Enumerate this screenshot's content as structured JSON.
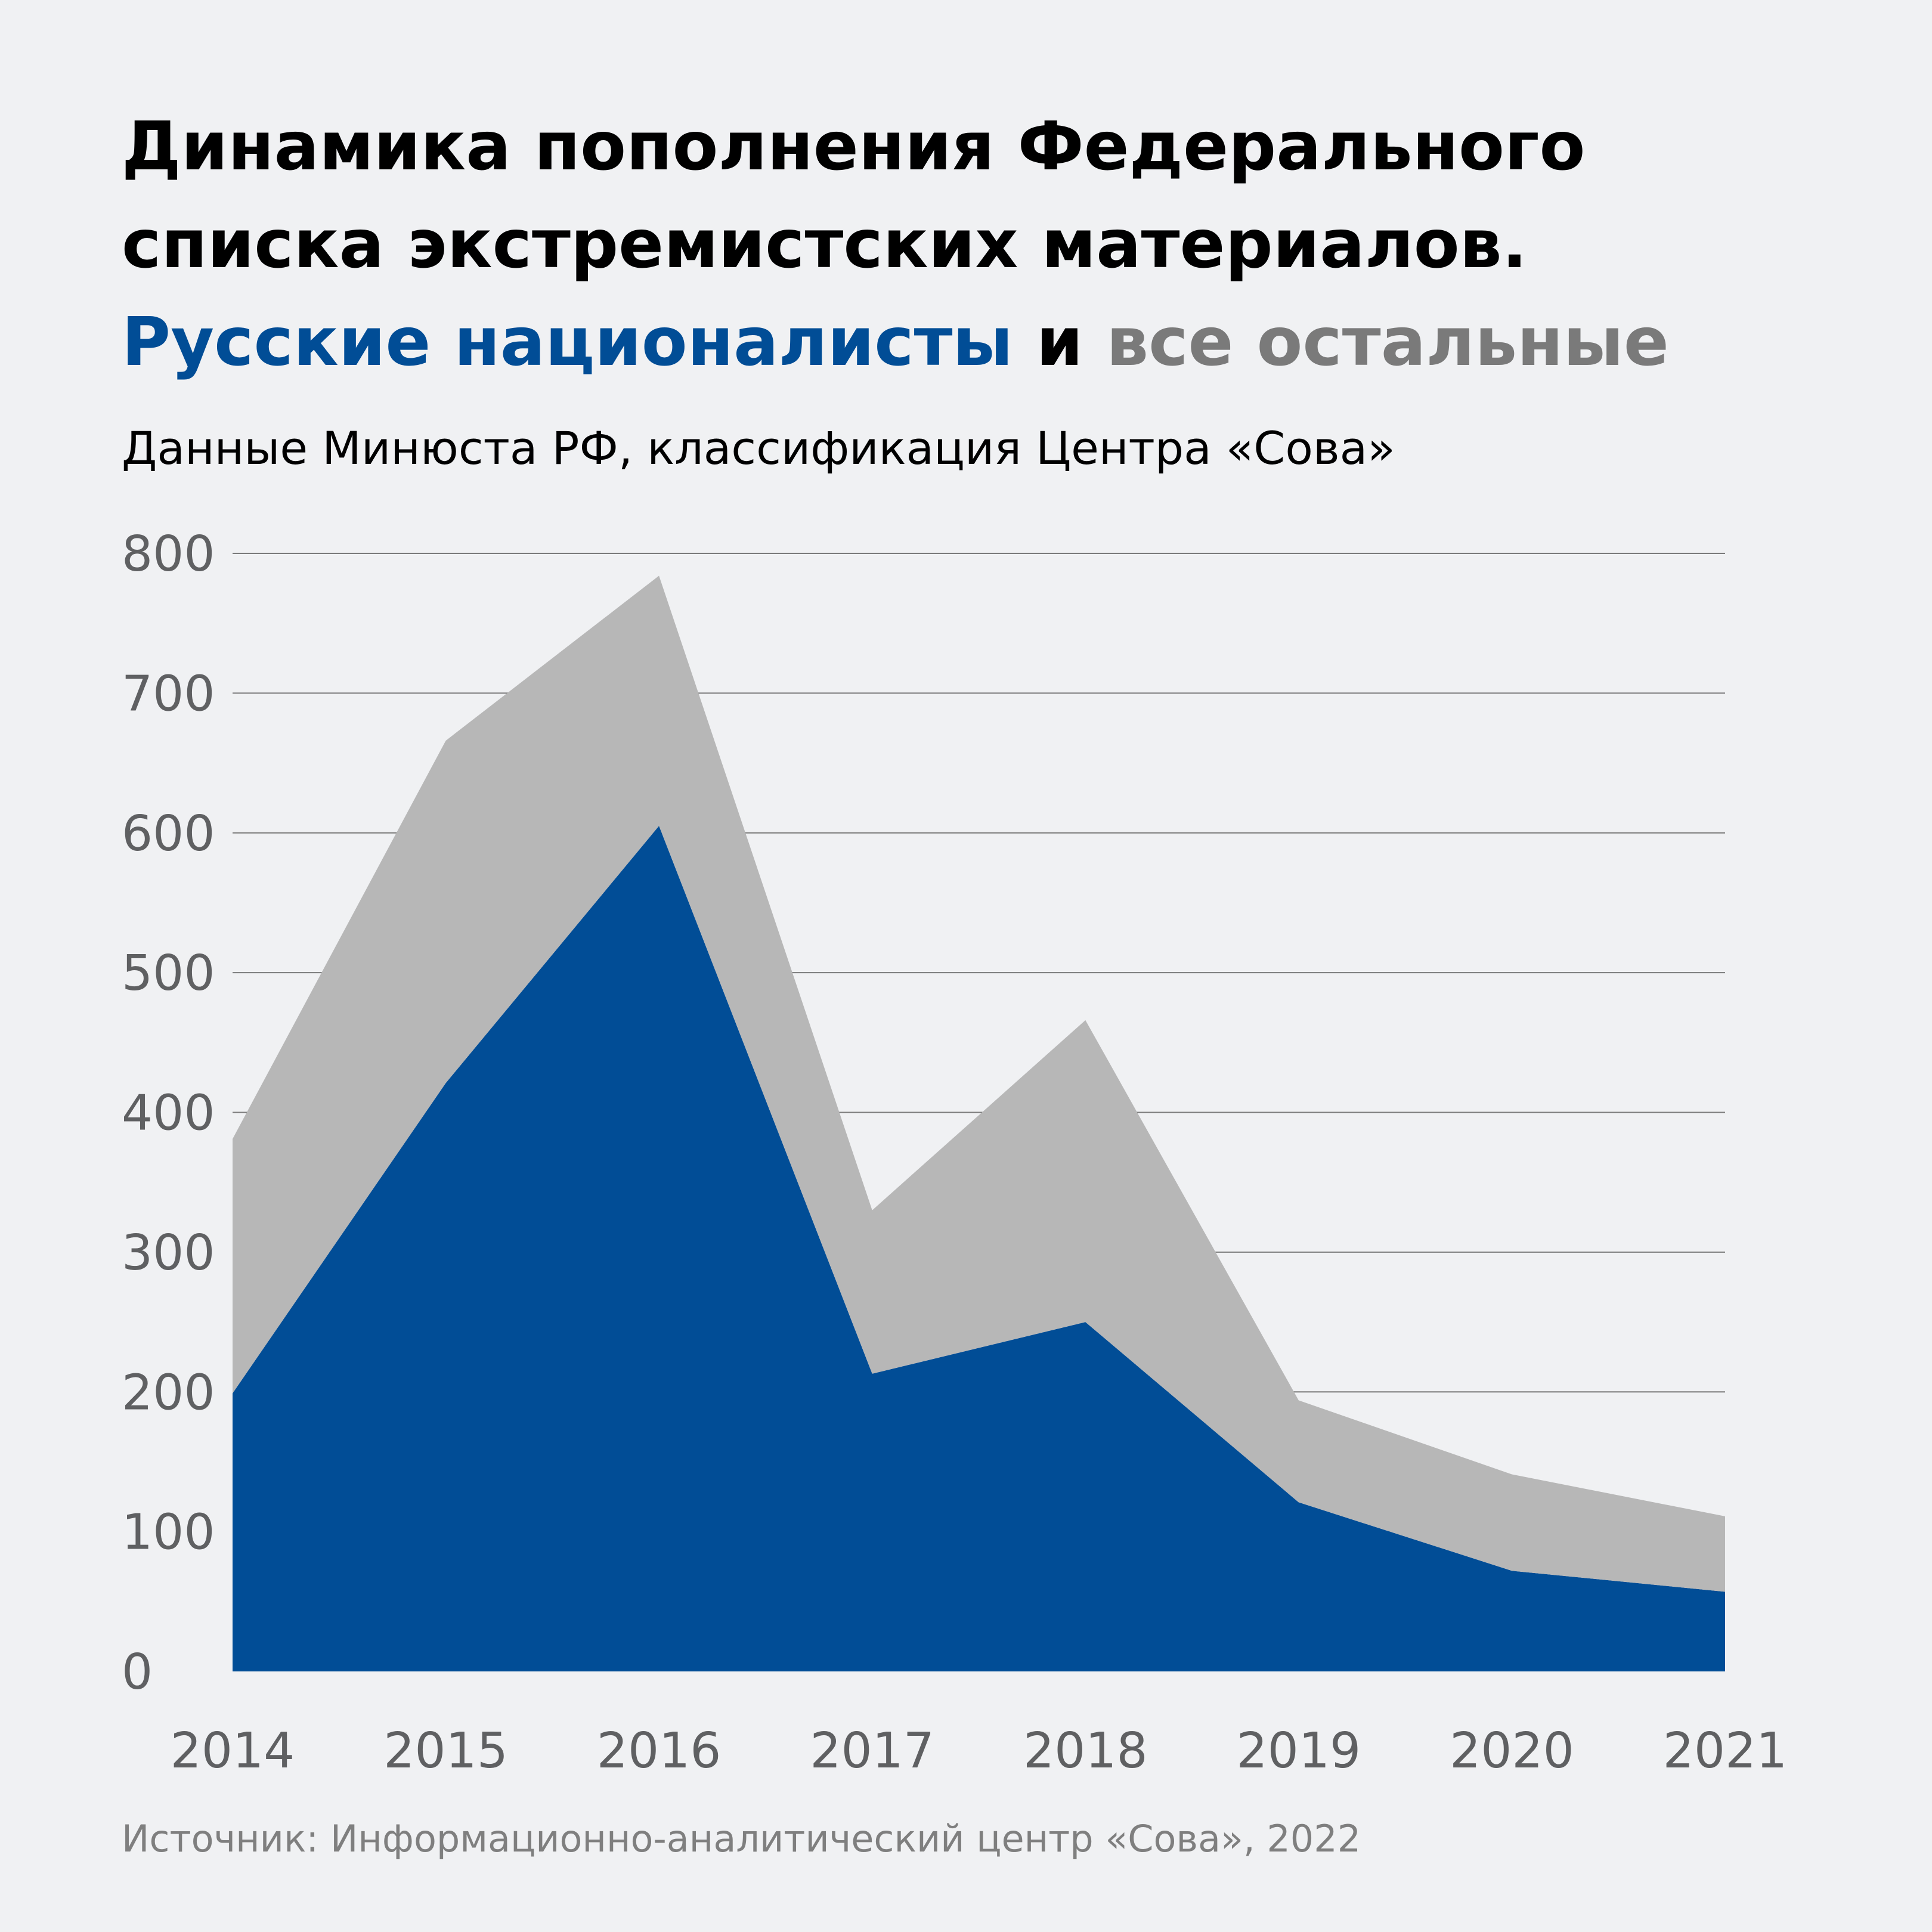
{
  "title": {
    "line1": "Динамика пополнения Федерального",
    "line2": "списка экстремистских материалов.",
    "line3_part1": "Русские националисты",
    "line3_part2": " и ",
    "line3_part3": "все остальные"
  },
  "subtitle": "Данные Минюста РФ, классификация Центра «Сова»",
  "source": "Источник: Информационно-аналитический центр «Сова», 2022",
  "colors": {
    "background": "#f0f1f3",
    "nationalists": "#014d96",
    "others": "#b7b7b7",
    "grid": "#7a7a7a",
    "tick_text": "#5f6062",
    "source_text": "#7f7f7f"
  },
  "chart_data": {
    "type": "area",
    "stacked": true,
    "categories": [
      "2014",
      "2015",
      "2016",
      "2017",
      "2018",
      "2019",
      "2020",
      "2021"
    ],
    "series": [
      {
        "name": "Русские националисты",
        "color": "#014d96",
        "values": [
          199,
          421,
          605,
          213,
          250,
          121,
          72,
          57
        ]
      },
      {
        "name": "все остальные",
        "color": "#b7b7b7",
        "values": [
          182,
          245,
          179,
          117,
          216,
          73,
          69,
          54
        ]
      }
    ],
    "ylim": [
      0,
      800
    ],
    "yticks": [
      "0",
      "100",
      "200",
      "300",
      "400",
      "500",
      "600",
      "700",
      "800"
    ],
    "grid": true,
    "xlabel": "",
    "ylabel": ""
  }
}
